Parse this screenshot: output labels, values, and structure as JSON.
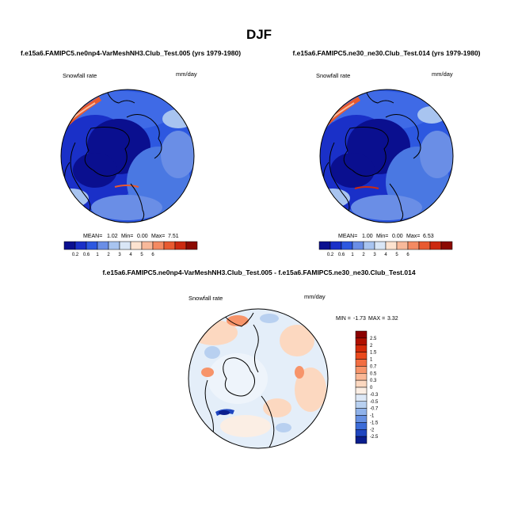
{
  "chart_data": {
    "type": "map-panels",
    "title": "DJF",
    "panels": [
      {
        "id": "p1",
        "title": "f.e15a6.FAMIPC5.ne0np4-VarMeshNH3.Club_Test.005 (yrs 1979-1980)",
        "variable": "Snowfall rate",
        "units": "mm/day",
        "stats": {
          "mean_label": "MEAN=",
          "mean": "1.02",
          "min_label": "Min=",
          "min": "0.00",
          "max_label": "Max=",
          "max": "7.51"
        },
        "colorbar": {
          "levels": [
            "0.2",
            "0.6",
            "1",
            "2",
            "3",
            "4",
            "5",
            "6"
          ],
          "colors": [
            "#0a0f8f",
            "#1a30c8",
            "#2d58e0",
            "#6a8ee6",
            "#a8c4f0",
            "#d9e6f6",
            "#fde3d0",
            "#f8b99a",
            "#f48a62",
            "#e85a30",
            "#cc2a10",
            "#8b0a02"
          ]
        }
      },
      {
        "id": "p2",
        "title": "f.e15a6.FAMIPC5.ne30_ne30.Club_Test.014 (yrs 1979-1980)",
        "variable": "Snowfall rate",
        "units": "mm/day",
        "stats": {
          "mean_label": "MEAN=",
          "mean": "1.00",
          "min_label": "Min=",
          "min": "0.00",
          "max_label": "Max=",
          "max": "6.53"
        },
        "colorbar": {
          "levels": [
            "0.2",
            "0.6",
            "1",
            "2",
            "3",
            "4",
            "5",
            "6"
          ],
          "colors": [
            "#0a0f8f",
            "#1a30c8",
            "#2d58e0",
            "#6a8ee6",
            "#a8c4f0",
            "#d9e6f6",
            "#fde3d0",
            "#f8b99a",
            "#f48a62",
            "#e85a30",
            "#cc2a10",
            "#8b0a02"
          ]
        }
      },
      {
        "id": "p3",
        "title": "f.e15a6.FAMIPC5.ne0np4-VarMeshNH3.Club_Test.005 - f.e15a6.FAMIPC5.ne30_ne30.Club_Test.014",
        "variable": "Snowfall rate",
        "units": "mm/day",
        "stats": {
          "min_label": "MIN =",
          "min": "-1.73",
          "max_label": "MAX =",
          "max": "3.32"
        },
        "colorbar": {
          "levels": [
            "2.5",
            "2",
            "1.5",
            "1",
            "0.7",
            "0.5",
            "0.3",
            "0",
            "-0.3",
            "-0.5",
            "-0.7",
            "-1",
            "-1.5",
            "-2",
            "-2.5"
          ],
          "colors": [
            "#8b0000",
            "#b01000",
            "#d42a0a",
            "#ea4a1e",
            "#f26e42",
            "#f7946a",
            "#fab896",
            "#fcd8c0",
            "#fbeee4",
            "#dde8f6",
            "#b8d0f0",
            "#8fb2ea",
            "#6690e2",
            "#3c6cd8",
            "#1f46c0",
            "#0a1e8e"
          ]
        }
      }
    ]
  },
  "colors": {
    "land_outline": "#000000",
    "deep_blue": "#0a0f8f",
    "mid_blue": "#2d58e0",
    "light_blue": "#a8c4f0",
    "diff_background": "#e4eef9"
  }
}
